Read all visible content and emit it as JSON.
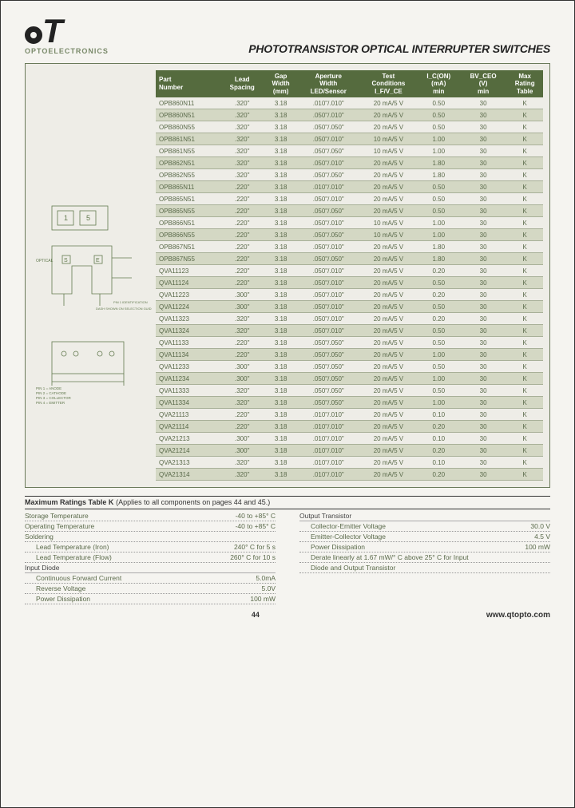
{
  "logo": {
    "text": "QT",
    "sub": "OPTOELECTRONICS"
  },
  "title": "PHOTOTRANSISTOR OPTICAL INTERRUPTER SWITCHES",
  "footer": {
    "page": "44",
    "url": "www.qtopto.com"
  },
  "diagrams": {
    "d1_labels": [
      "1",
      "5"
    ],
    "d2_labels": [
      "S",
      "E"
    ],
    "notes": {
      "id1": "PIN 1 IDENTIFICATION",
      "id2": "DASH SHOWN ON SELECTION GUIDE",
      "id3": "PIN 1 = ANODE\nPIN 2 = CATHODE\nPIN 3 = COLLECTOR\nPIN 4 = EMITTER"
    }
  },
  "table": {
    "headers": [
      "Part\nNumber",
      "Lead\nSpacing",
      "Gap\nWidth\n(mm)",
      "Aperture\nWidth\nLED/Sensor",
      "Test\nConditions\nI_F/V_CE",
      "I_C(ON)\n(mA)\nmin",
      "BV_CEO\n(V)\nmin",
      "Max\nRating\nTable"
    ],
    "rows": [
      [
        "OPB860N11",
        ".320\"",
        "3.18",
        ".010\"/.010\"",
        "20 mA/5 V",
        "0.50",
        "30",
        "K"
      ],
      [
        "OPB860N51",
        ".320\"",
        "3.18",
        ".050\"/.010\"",
        "20 mA/5 V",
        "0.50",
        "30",
        "K"
      ],
      [
        "OPB860N55",
        ".320\"",
        "3.18",
        ".050\"/.050\"",
        "20 mA/5 V",
        "0.50",
        "30",
        "K"
      ],
      [
        "OPB861N51",
        ".320\"",
        "3.18",
        ".050\"/.010\"",
        "10 mA/5 V",
        "1.00",
        "30",
        "K"
      ],
      [
        "OPB861N55",
        ".320\"",
        "3.18",
        ".050\"/.050\"",
        "10 mA/5 V",
        "1.00",
        "30",
        "K"
      ],
      [
        "OPB862N51",
        ".320\"",
        "3.18",
        ".050\"/.010\"",
        "20 mA/5 V",
        "1.80",
        "30",
        "K"
      ],
      [
        "OPB862N55",
        ".320\"",
        "3.18",
        ".050\"/.050\"",
        "20 mA/5 V",
        "1.80",
        "30",
        "K"
      ],
      [
        "OPB865N11",
        ".220\"",
        "3.18",
        ".010\"/.010\"",
        "20 mA/5 V",
        "0.50",
        "30",
        "K"
      ],
      [
        "OPB865N51",
        ".220\"",
        "3.18",
        ".050\"/.010\"",
        "20 mA/5 V",
        "0.50",
        "30",
        "K"
      ],
      [
        "OPB865N55",
        ".220\"",
        "3.18",
        ".050\"/.050\"",
        "20 mA/5 V",
        "0.50",
        "30",
        "K"
      ],
      [
        "OPB866N51",
        ".220\"",
        "3.18",
        ".050\"/.010\"",
        "10 mA/5 V",
        "1.00",
        "30",
        "K"
      ],
      [
        "OPB866N55",
        ".220\"",
        "3.18",
        ".050\"/.050\"",
        "10 mA/5 V",
        "1.00",
        "30",
        "K"
      ],
      [
        "OPB867N51",
        ".220\"",
        "3.18",
        ".050\"/.010\"",
        "20 mA/5 V",
        "1.80",
        "30",
        "K"
      ],
      [
        "OPB867N55",
        ".220\"",
        "3.18",
        ".050\"/.050\"",
        "20 mA/5 V",
        "1.80",
        "30",
        "K"
      ],
      [
        "QVA11123",
        ".220\"",
        "3.18",
        ".050\"/.010\"",
        "20 mA/5 V",
        "0.20",
        "30",
        "K"
      ],
      [
        "QVA11124",
        ".220\"",
        "3.18",
        ".050\"/.010\"",
        "20 mA/5 V",
        "0.50",
        "30",
        "K"
      ],
      [
        "QVA11223",
        ".300\"",
        "3.18",
        ".050\"/.010\"",
        "20 mA/5 V",
        "0.20",
        "30",
        "K"
      ],
      [
        "QVA11224",
        ".300\"",
        "3.18",
        ".050\"/.010\"",
        "20 mA/5 V",
        "0.50",
        "30",
        "K"
      ],
      [
        "QVA11323",
        ".320\"",
        "3.18",
        ".050\"/.010\"",
        "20 mA/5 V",
        "0.20",
        "30",
        "K"
      ],
      [
        "QVA11324",
        ".320\"",
        "3.18",
        ".050\"/.010\"",
        "20 mA/5 V",
        "0.50",
        "30",
        "K"
      ],
      [
        "QVA11133",
        ".220\"",
        "3.18",
        ".050\"/.050\"",
        "20 mA/5 V",
        "0.50",
        "30",
        "K"
      ],
      [
        "QVA11134",
        ".220\"",
        "3.18",
        ".050\"/.050\"",
        "20 mA/5 V",
        "1.00",
        "30",
        "K"
      ],
      [
        "QVA11233",
        ".300\"",
        "3.18",
        ".050\"/.050\"",
        "20 mA/5 V",
        "0.50",
        "30",
        "K"
      ],
      [
        "QVA11234",
        ".300\"",
        "3.18",
        ".050\"/.050\"",
        "20 mA/5 V",
        "1.00",
        "30",
        "K"
      ],
      [
        "QVA11333",
        ".320\"",
        "3.18",
        ".050\"/.050\"",
        "20 mA/5 V",
        "0.50",
        "30",
        "K"
      ],
      [
        "QVA11334",
        ".320\"",
        "3.18",
        ".050\"/.050\"",
        "20 mA/5 V",
        "1.00",
        "30",
        "K"
      ],
      [
        "QVA21113",
        ".220\"",
        "3.18",
        ".010\"/.010\"",
        "20 mA/5 V",
        "0.10",
        "30",
        "K"
      ],
      [
        "QVA21114",
        ".220\"",
        "3.18",
        ".010\"/.010\"",
        "20 mA/5 V",
        "0.20",
        "30",
        "K"
      ],
      [
        "QVA21213",
        ".300\"",
        "3.18",
        ".010\"/.010\"",
        "20 mA/5 V",
        "0.10",
        "30",
        "K"
      ],
      [
        "QVA21214",
        ".300\"",
        "3.18",
        ".010\"/.010\"",
        "20 mA/5 V",
        "0.20",
        "30",
        "K"
      ],
      [
        "QVA21313",
        ".320\"",
        "3.18",
        ".010\"/.010\"",
        "20 mA/5 V",
        "0.10",
        "30",
        "K"
      ],
      [
        "QVA21314",
        ".320\"",
        "3.18",
        ".010\"/.010\"",
        "20 mA/5 V",
        "0.20",
        "30",
        "K"
      ]
    ],
    "alt_rows": [
      1,
      3,
      5,
      7,
      9,
      11,
      13,
      15,
      17,
      19,
      21,
      23,
      25,
      27,
      29,
      31
    ]
  },
  "ratings": {
    "title": "Maximum Ratings Table K",
    "subtitle": "(Applies to all components on pages 44 and 45.)",
    "left": [
      {
        "lbl": "Storage Temperature",
        "val": "-40 to +85° C"
      },
      {
        "lbl": "Operating Temperature",
        "val": "-40 to +85° C"
      },
      {
        "lbl": "Soldering",
        "val": ""
      },
      {
        "lbl": "Lead Temperature (Iron)",
        "val": "240° C for 5 s",
        "indent": true
      },
      {
        "lbl": "Lead Temperature (Flow)",
        "val": "260° C for 10 s",
        "indent": true
      },
      {
        "lbl": "Input Diode",
        "val": "",
        "hdr": true
      },
      {
        "lbl": "Continuous Forward Current",
        "val": "5.0mA",
        "indent": true
      },
      {
        "lbl": "Reverse Voltage",
        "val": "5.0V",
        "indent": true
      },
      {
        "lbl": "Power Dissipation",
        "val": "100 mW",
        "indent": true
      }
    ],
    "right": [
      {
        "lbl": "Output Transistor",
        "val": "",
        "hdr": true
      },
      {
        "lbl": "Collector-Emitter Voltage",
        "val": "30.0 V",
        "indent": true
      },
      {
        "lbl": "Emitter-Collector Voltage",
        "val": "4.5 V",
        "indent": true
      },
      {
        "lbl": "Power Dissipation",
        "val": "100 mW",
        "indent": true
      },
      {
        "lbl": "Derate linearly at 1.67 mW/° C above 25° C for Input",
        "val": "",
        "indent": true
      },
      {
        "lbl": "Diode and Output Transistor",
        "val": "",
        "indent": true
      }
    ]
  }
}
